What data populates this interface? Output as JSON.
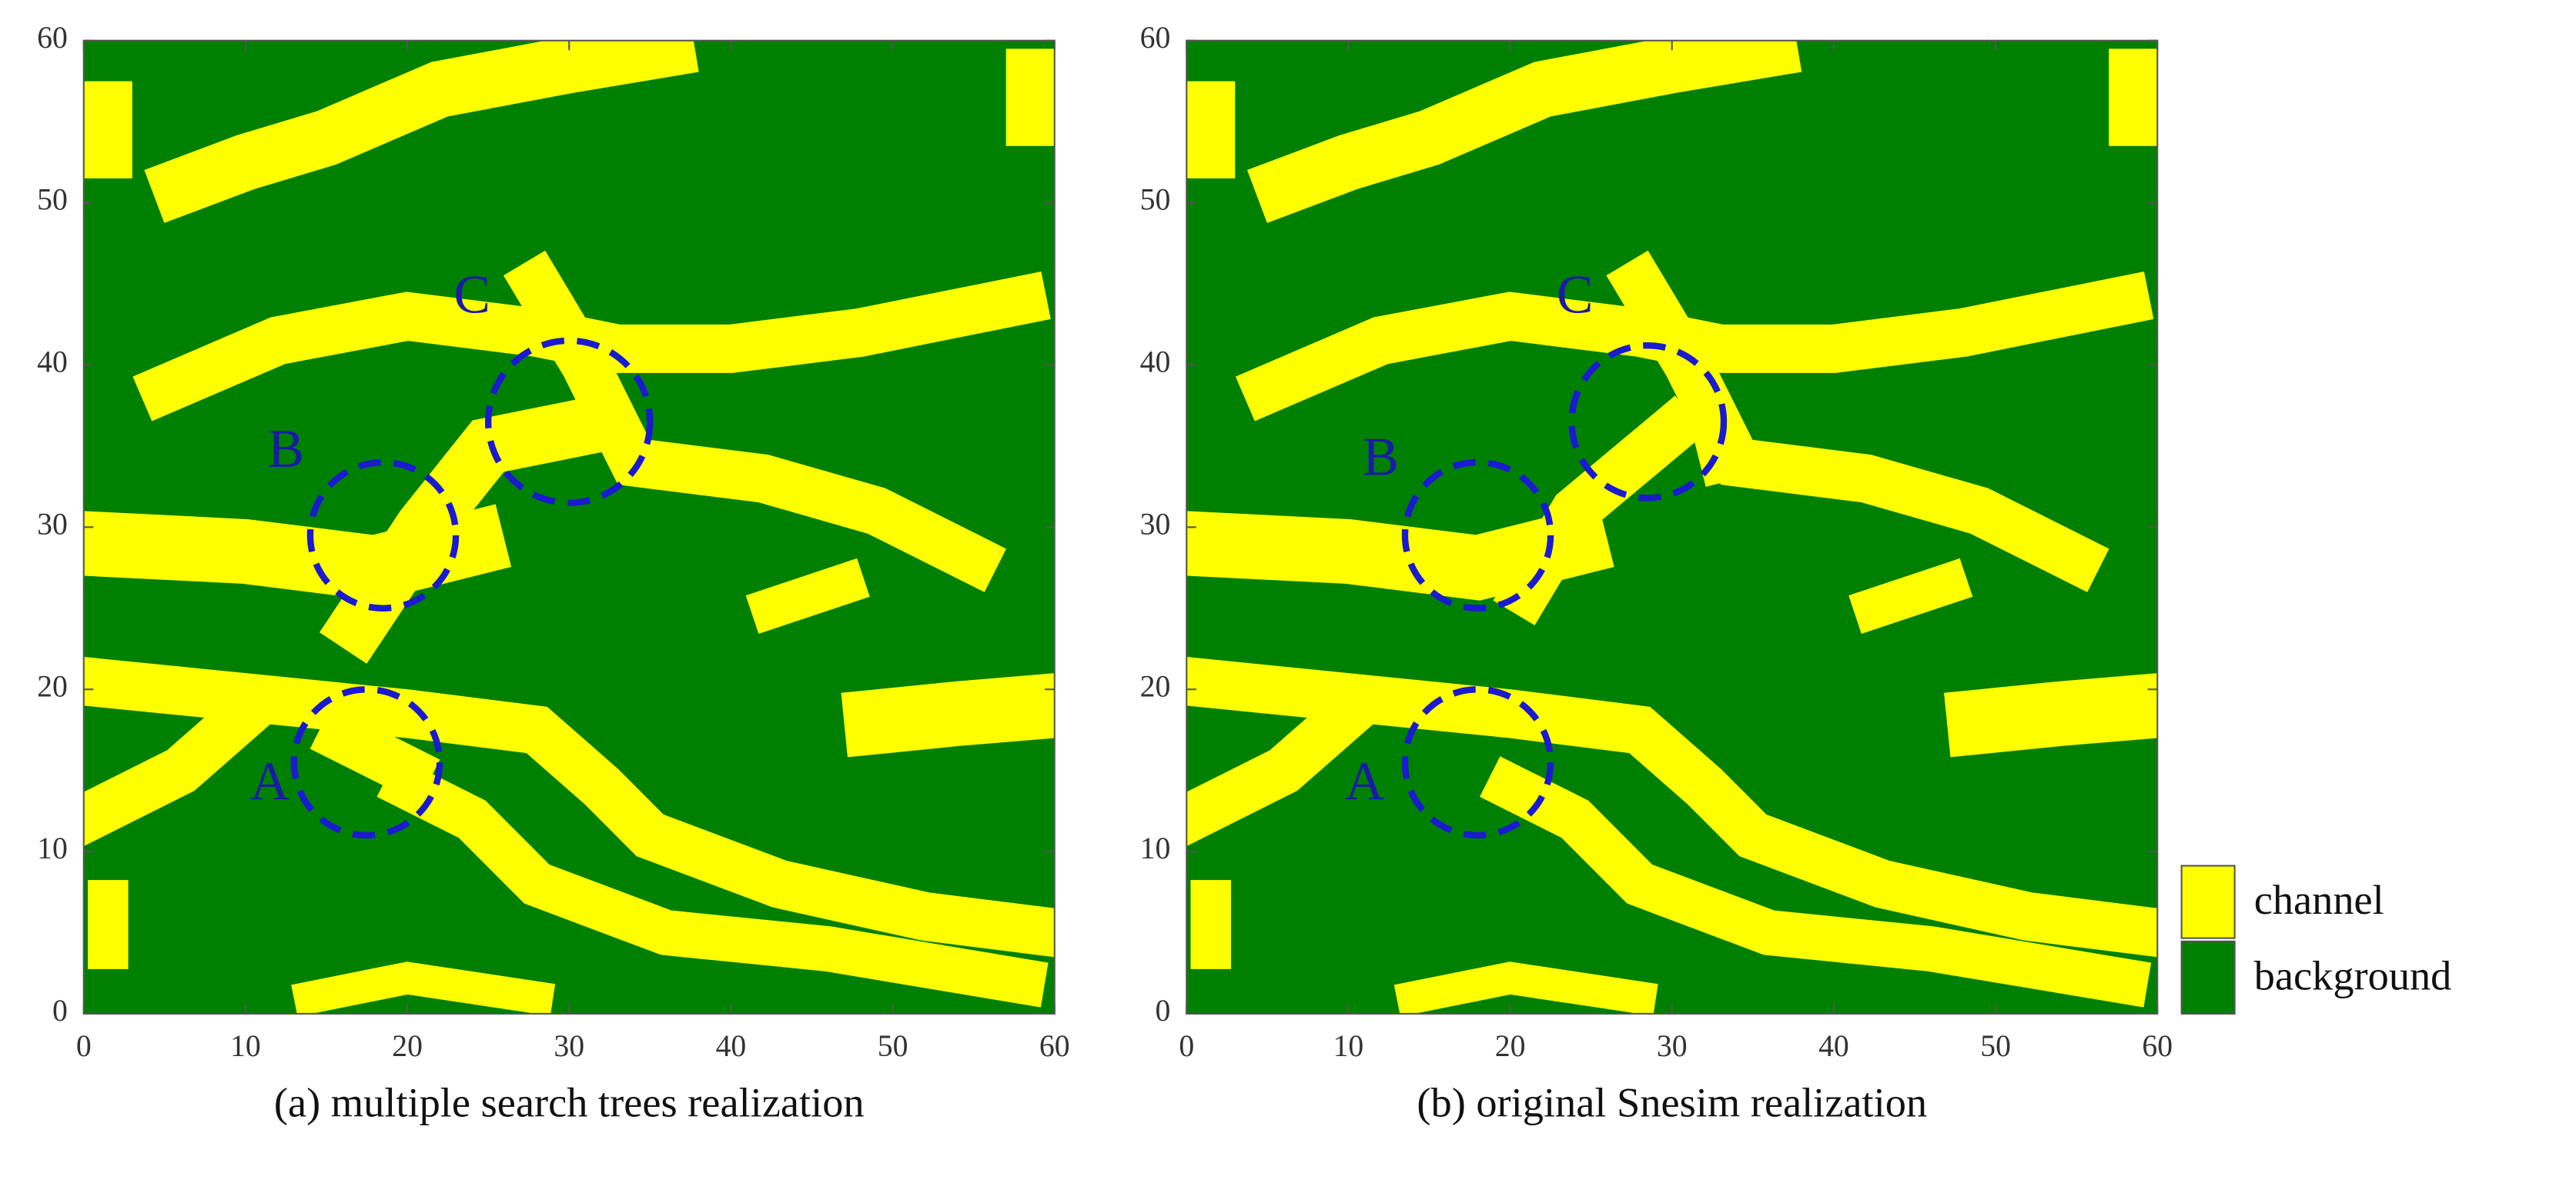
{
  "chart_data": [
    {
      "type": "heatmap",
      "title": "(a) multiple search trees realization",
      "xlim": [
        0,
        60
      ],
      "ylim": [
        0,
        60
      ],
      "xticks": [
        0,
        10,
        20,
        30,
        40,
        50,
        60
      ],
      "yticks": [
        0,
        10,
        20,
        30,
        40,
        50,
        60
      ],
      "annotations": [
        "A",
        "B",
        "C"
      ]
    },
    {
      "type": "heatmap",
      "title": "(b) original Snesim realization",
      "xlim": [
        0,
        60
      ],
      "ylim": [
        0,
        60
      ],
      "xticks": [
        0,
        10,
        20,
        30,
        40,
        50,
        60
      ],
      "yticks": [
        0,
        10,
        20,
        30,
        40,
        50,
        60
      ],
      "annotations": [
        "A",
        "B",
        "C"
      ]
    }
  ],
  "legend": [
    {
      "name": "channel",
      "color": "#ffff00"
    },
    {
      "name": "background",
      "color": "#008000"
    }
  ]
}
